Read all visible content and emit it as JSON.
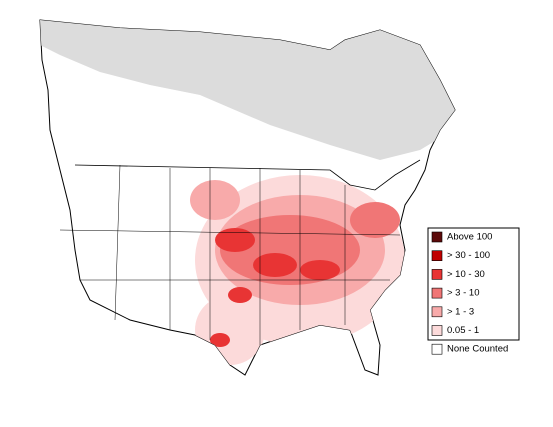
{
  "legend": {
    "items": [
      {
        "label": "Above 100",
        "color": "#5c0a0a"
      },
      {
        "label": "> 30 - 100",
        "color": "#c00000"
      },
      {
        "label": "> 10 - 30",
        "color": "#e83434"
      },
      {
        "label": "> 3 - 10",
        "color": "#f07676"
      },
      {
        "label": "> 1 - 3",
        "color": "#f8aaaa"
      },
      {
        "label": "0.05 - 1",
        "color": "#fcdada"
      },
      {
        "label": "None Counted",
        "color": "#ffffff"
      }
    ]
  }
}
